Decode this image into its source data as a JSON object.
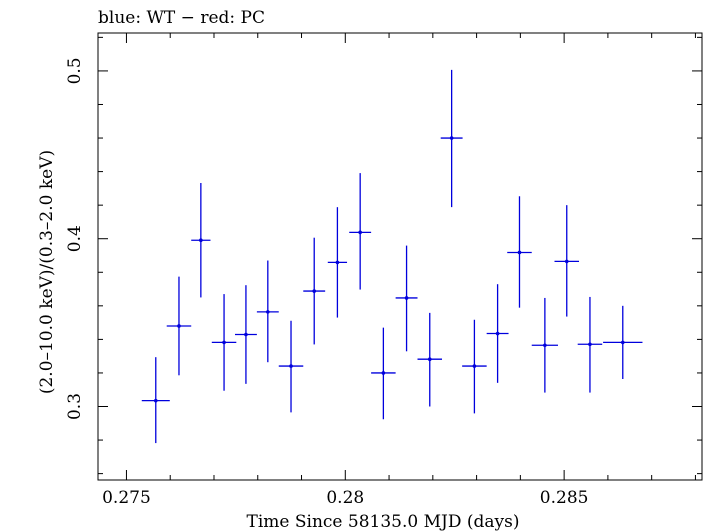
{
  "chart_data": {
    "type": "scatter",
    "title": "blue: WT − red: PC",
    "xlabel": "Time Since 58135.0 MJD (days)",
    "ylabel": "(2.0–10.0 keV)/(0.3–2.0 keV)",
    "xlim": [
      0.27435,
      0.28815
    ],
    "ylim": [
      0.2562,
      0.5226
    ],
    "x_ticks": [
      0.275,
      0.28,
      0.285
    ],
    "x_tick_labels": [
      "0.275",
      "0.28",
      "0.285"
    ],
    "y_ticks": [
      0.3,
      0.4,
      0.5
    ],
    "y_tick_labels": [
      "0.3",
      "0.4",
      "0.5"
    ],
    "grid": false,
    "series": [
      {
        "color": "#0000dd",
        "points": [
          {
            "x": 0.27567,
            "xerr": 0.00032,
            "y": 0.3035,
            "yerr_low": 0.0253,
            "yerr_high": 0.0259
          },
          {
            "x": 0.2762,
            "xerr": 0.00028,
            "y": 0.348,
            "yerr_low": 0.0294,
            "yerr_high": 0.0294
          },
          {
            "x": 0.2767,
            "xerr": 0.00022,
            "y": 0.3991,
            "yerr_low": 0.0341,
            "yerr_high": 0.0341
          },
          {
            "x": 0.27723,
            "xerr": 0.00028,
            "y": 0.3382,
            "yerr_low": 0.0288,
            "yerr_high": 0.0288
          },
          {
            "x": 0.27773,
            "xerr": 0.00025,
            "y": 0.3429,
            "yerr_low": 0.0294,
            "yerr_high": 0.0294
          },
          {
            "x": 0.27823,
            "xerr": 0.00025,
            "y": 0.3564,
            "yerr_low": 0.03,
            "yerr_high": 0.0306
          },
          {
            "x": 0.27876,
            "xerr": 0.00028,
            "y": 0.3241,
            "yerr_low": 0.0276,
            "yerr_high": 0.027
          },
          {
            "x": 0.27929,
            "xerr": 0.00025,
            "y": 0.3688,
            "yerr_low": 0.0318,
            "yerr_high": 0.0318
          },
          {
            "x": 0.27982,
            "xerr": 0.00022,
            "y": 0.3859,
            "yerr_low": 0.0329,
            "yerr_high": 0.0329
          },
          {
            "x": 0.28034,
            "xerr": 0.00025,
            "y": 0.4038,
            "yerr_low": 0.0341,
            "yerr_high": 0.0353
          },
          {
            "x": 0.28087,
            "xerr": 0.00028,
            "y": 0.32,
            "yerr_low": 0.0276,
            "yerr_high": 0.027
          },
          {
            "x": 0.2814,
            "xerr": 0.00025,
            "y": 0.3647,
            "yerr_low": 0.0318,
            "yerr_high": 0.0312
          },
          {
            "x": 0.28193,
            "xerr": 0.00028,
            "y": 0.3282,
            "yerr_low": 0.0282,
            "yerr_high": 0.0276
          },
          {
            "x": 0.28243,
            "xerr": 0.00025,
            "y": 0.46,
            "yerr_low": 0.0412,
            "yerr_high": 0.0406
          },
          {
            "x": 0.28295,
            "xerr": 0.00028,
            "y": 0.3241,
            "yerr_low": 0.0282,
            "yerr_high": 0.0276
          },
          {
            "x": 0.28348,
            "xerr": 0.00025,
            "y": 0.3435,
            "yerr_low": 0.0294,
            "yerr_high": 0.0294
          },
          {
            "x": 0.28398,
            "xerr": 0.00028,
            "y": 0.3918,
            "yerr_low": 0.0329,
            "yerr_high": 0.0335
          },
          {
            "x": 0.28456,
            "xerr": 0.0003,
            "y": 0.3365,
            "yerr_low": 0.0282,
            "yerr_high": 0.0282
          },
          {
            "x": 0.28506,
            "xerr": 0.00028,
            "y": 0.3865,
            "yerr_low": 0.0329,
            "yerr_high": 0.0335
          },
          {
            "x": 0.28559,
            "xerr": 0.00028,
            "y": 0.3371,
            "yerr_low": 0.0288,
            "yerr_high": 0.0282
          },
          {
            "x": 0.28634,
            "xerr": 0.00045,
            "y": 0.3382,
            "yerr_low": 0.0218,
            "yerr_high": 0.0218
          }
        ]
      }
    ]
  }
}
